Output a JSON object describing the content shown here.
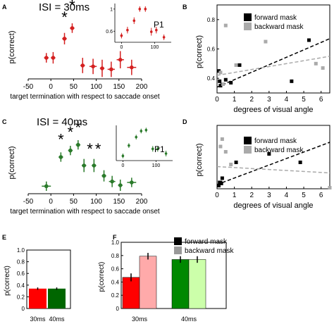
{
  "chart_data": [
    {
      "panel": "A",
      "type": "scatter",
      "title": "ISI = 30ms",
      "xlabel": "target termination with respect to saccade onset",
      "ylabel": "p(correct)",
      "xlim": [
        -50,
        200
      ],
      "ylim": [
        0.25,
        1.0
      ],
      "xticks": [
        -50,
        0,
        50,
        100,
        150,
        200
      ],
      "color": "#d42020",
      "points": [
        {
          "x": -10,
          "y": 0.47,
          "xerr": 5,
          "yerr": 0.05
        },
        {
          "x": 5,
          "y": 0.47,
          "xerr": 5,
          "yerr": 0.06
        },
        {
          "x": 30,
          "y": 0.67,
          "xerr": 5,
          "yerr": 0.06
        },
        {
          "x": 47,
          "y": 0.78,
          "xerr": 5,
          "yerr": 0.05
        },
        {
          "x": 70,
          "y": 0.39,
          "xerr": 5,
          "yerr": 0.08
        },
        {
          "x": 93,
          "y": 0.38,
          "xerr": 8,
          "yerr": 0.08
        },
        {
          "x": 113,
          "y": 0.36,
          "xerr": 5,
          "yerr": 0.09
        },
        {
          "x": 133,
          "y": 0.35,
          "xerr": 8,
          "yerr": 0.08
        },
        {
          "x": 153,
          "y": 0.45,
          "xerr": 8,
          "yerr": 0.09
        },
        {
          "x": 178,
          "y": 0.37,
          "xerr": 10,
          "yerr": 0.08
        }
      ],
      "stars": [
        "*",
        "*"
      ],
      "star_x": [
        30,
        47
      ],
      "star_y": [
        0.84,
        0.96
      ],
      "inset": {
        "label": "P1",
        "xlim": [
          -20,
          150
        ],
        "ylim": [
          0.4,
          1.1
        ],
        "xticks": [
          0,
          100
        ],
        "yticks": [
          0.6,
          1
        ],
        "xticklabels": [
          "0",
          "100"
        ],
        "yticklabels": [
          "0.6",
          "1"
        ],
        "points": [
          {
            "x": 0,
            "y": 0.52,
            "yerr": 0.05
          },
          {
            "x": 18,
            "y": 0.62,
            "yerr": 0.06
          },
          {
            "x": 38,
            "y": 0.79,
            "yerr": 0.06
          },
          {
            "x": 55,
            "y": 1.0,
            "yerr": 0.05
          },
          {
            "x": 72,
            "y": 1.0,
            "yerr": 0.05
          },
          {
            "x": 90,
            "y": 0.59,
            "yerr": 0.07
          },
          {
            "x": 105,
            "y": 0.62,
            "yerr": 0.06
          },
          {
            "x": 128,
            "y": 0.49,
            "yerr": 0.05
          }
        ]
      }
    },
    {
      "panel": "B",
      "type": "scatter",
      "title": "",
      "xlabel": "degrees of visual angle",
      "ylabel": "p(correct)",
      "xlim": [
        0,
        6.5
      ],
      "ylim": [
        0.3,
        0.9
      ],
      "xticks": [
        0,
        1,
        2,
        3,
        4,
        5,
        6
      ],
      "yticks": [
        0.4,
        0.6,
        0.8
      ],
      "legend": {
        "position": "top-left",
        "entries": [
          "forward mask",
          "backward mask"
        ]
      },
      "series": [
        {
          "name": "forward mask",
          "color": "#000000",
          "points": [
            [
              0.1,
              0.45
            ],
            [
              0.15,
              0.38
            ],
            [
              0.2,
              0.35
            ],
            [
              0.3,
              0.36
            ],
            [
              0.5,
              0.39
            ],
            [
              0.8,
              0.37
            ],
            [
              1.3,
              0.49
            ],
            [
              4.3,
              0.38
            ],
            [
              5.3,
              0.66
            ]
          ],
          "fit": [
            [
              0,
              0.34
            ],
            [
              6.5,
              0.67
            ]
          ],
          "fit_style": "dashed"
        },
        {
          "name": "backward mask",
          "color": "#aaaaaa",
          "points": [
            [
              0.2,
              0.44
            ],
            [
              0.35,
              0.36
            ],
            [
              0.5,
              0.76
            ],
            [
              1.1,
              0.49
            ],
            [
              2.8,
              0.65
            ],
            [
              5.7,
              0.5
            ],
            [
              6.1,
              0.47
            ]
          ],
          "fit": [
            [
              0,
              0.42
            ],
            [
              6.5,
              0.55
            ]
          ],
          "fit_style": "dashed"
        }
      ]
    },
    {
      "panel": "C",
      "type": "scatter",
      "title": "ISI = 40ms",
      "xlabel": "target termination with respect to saccade onset",
      "ylabel": "p(correct)",
      "xlim": [
        -50,
        200
      ],
      "ylim": [
        0.25,
        1.0
      ],
      "xticks": [
        -50,
        0,
        50,
        100,
        150,
        200
      ],
      "color": "#2a7a2a",
      "points": [
        {
          "x": -10,
          "y": 0.33,
          "xerr": 10,
          "yerr": 0.05
        },
        {
          "x": 22,
          "y": 0.64,
          "xerr": 5,
          "yerr": 0.05
        },
        {
          "x": 43,
          "y": 0.71,
          "xerr": 5,
          "yerr": 0.05
        },
        {
          "x": 60,
          "y": 0.77,
          "xerr": 5,
          "yerr": 0.05
        },
        {
          "x": 73,
          "y": 0.55,
          "xerr": 5,
          "yerr": 0.07
        },
        {
          "x": 95,
          "y": 0.55,
          "xerr": 5,
          "yerr": 0.07
        },
        {
          "x": 117,
          "y": 0.44,
          "xerr": 5,
          "yerr": 0.06
        },
        {
          "x": 135,
          "y": 0.38,
          "xerr": 7,
          "yerr": 0.06
        },
        {
          "x": 153,
          "y": 0.34,
          "xerr": 5,
          "yerr": 0.06
        },
        {
          "x": 178,
          "y": 0.37,
          "xerr": 10,
          "yerr": 0.05
        }
      ],
      "stars": [
        "*",
        "*",
        "*",
        "*",
        "*"
      ],
      "star_x": [
        22,
        43,
        60,
        86,
        104
      ],
      "star_y": [
        0.77,
        0.85,
        0.9,
        0.67,
        0.67
      ],
      "inset": {
        "label": "P1",
        "xlim": [
          -20,
          150
        ],
        "ylim": [
          0.3,
          1.05
        ],
        "xticks": [
          0,
          100
        ],
        "yticks": [],
        "xticklabels": [
          "0",
          "100"
        ],
        "yticklabels": [],
        "points": [
          {
            "x": 0,
            "y": 0.4,
            "yerr": 0.05
          },
          {
            "x": 18,
            "y": 0.62,
            "yerr": 0.05
          },
          {
            "x": 40,
            "y": 0.8,
            "yerr": 0.05
          },
          {
            "x": 55,
            "y": 0.93,
            "yerr": 0.05
          },
          {
            "x": 70,
            "y": 0.95,
            "yerr": 0.05
          },
          {
            "x": 90,
            "y": 0.55,
            "yerr": 0.06
          },
          {
            "x": 105,
            "y": 0.55,
            "yerr": 0.06
          },
          {
            "x": 130,
            "y": 0.45,
            "yerr": 0.06
          }
        ]
      }
    },
    {
      "panel": "D",
      "type": "scatter",
      "title": "",
      "xlabel": "degrees of visual angle",
      "ylabel": "p(correct)",
      "xlim": [
        0,
        6.5
      ],
      "ylim": [
        0.3,
        0.9
      ],
      "xticks": [
        0,
        1,
        2,
        3,
        4,
        5,
        6
      ],
      "yticks": [],
      "legend": {
        "position": "top-left",
        "entries": [
          "forward mask",
          "backward mask"
        ]
      },
      "series": [
        {
          "name": "forward mask",
          "color": "#000000",
          "points": [
            [
              0.1,
              0.33
            ],
            [
              0.15,
              0.36
            ],
            [
              0.2,
              0.36
            ],
            [
              0.25,
              0.35
            ],
            [
              0.3,
              0.4
            ],
            [
              1.1,
              0.55
            ],
            [
              3.0,
              0.63
            ],
            [
              4.8,
              0.55
            ]
          ],
          "fit": [
            [
              0,
              0.34
            ],
            [
              6.5,
              0.74
            ]
          ],
          "fit_style": "dashed"
        },
        {
          "name": "backward mask",
          "color": "#aaaaaa",
          "points": [
            [
              0.2,
              0.7
            ],
            [
              0.3,
              0.77
            ],
            [
              0.5,
              0.65
            ],
            [
              0.8,
              0.53
            ],
            [
              6.5,
              0.31
            ]
          ],
          "fit": [
            [
              0,
              0.51
            ],
            [
              6.5,
              0.45
            ]
          ],
          "fit_style": "dashed"
        }
      ]
    },
    {
      "panel": "E",
      "type": "bar",
      "title": "",
      "ylabel": "p(correct)",
      "categories": [
        "30ms",
        "40ms"
      ],
      "values": [
        0.34,
        0.34
      ],
      "errors": [
        0.02,
        0.02
      ],
      "colors": [
        "#ff0000",
        "#006600"
      ],
      "ylim": [
        0,
        1.0
      ],
      "yticks": [
        0,
        0.2,
        0.4,
        0.6,
        0.8,
        1.0
      ],
      "yticklabels": [
        "0",
        "0.2",
        "0.4",
        "0.6",
        "0.8",
        "1.0"
      ]
    },
    {
      "panel": "F",
      "type": "bar",
      "title": "",
      "ylabel": "p(correct)",
      "categories": [
        "30ms",
        "40ms"
      ],
      "legend": {
        "position": "top-left",
        "entries": [
          "forward mask",
          "backward mask"
        ],
        "colors": [
          "#000000",
          "#999999"
        ]
      },
      "series": [
        {
          "name": "forward mask",
          "values": [
            0.47,
            0.74
          ],
          "errors": [
            0.06,
            0.05
          ],
          "colors": [
            "#ff0000",
            "#008800"
          ]
        },
        {
          "name": "backward mask",
          "values": [
            0.79,
            0.74
          ],
          "errors": [
            0.05,
            0.05
          ],
          "colors": [
            "#ffaaaa",
            "#ccffaa"
          ]
        }
      ],
      "ylim": [
        0,
        1.0
      ],
      "yticks": [
        0,
        0.2,
        0.4,
        0.6,
        0.8,
        1.0
      ],
      "yticklabels": [
        "0",
        "0.2",
        "0.4",
        "0.6",
        "0.8",
        "1.0"
      ]
    }
  ]
}
